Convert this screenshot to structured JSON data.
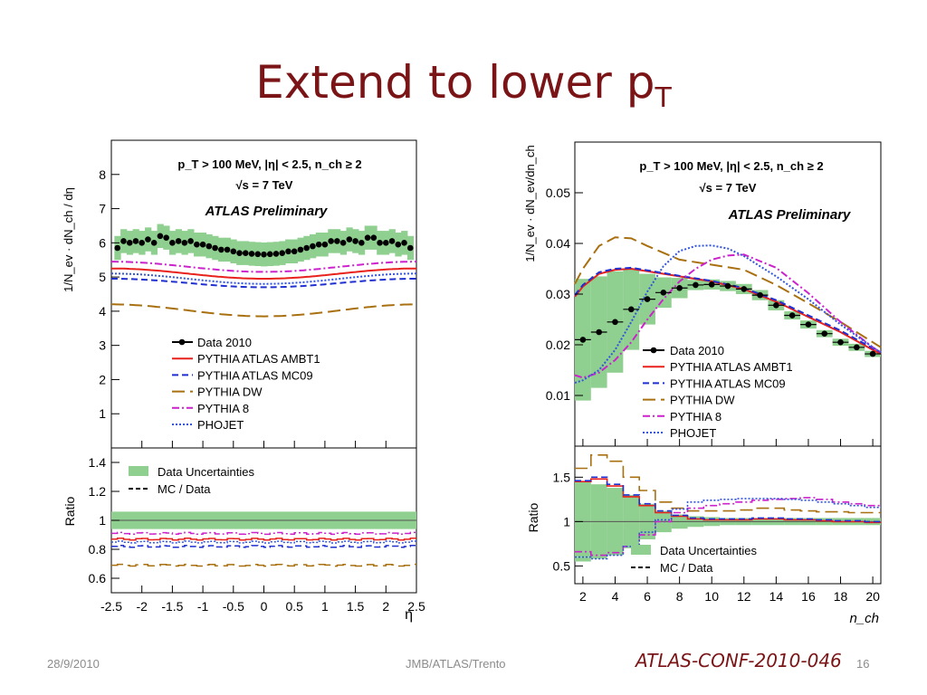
{
  "slide": {
    "title_main": "Extend to lower p",
    "title_sub": "T",
    "footer_date": "28/9/2010",
    "footer_center": "JMB/ATLAS/Trento",
    "footer_conf": "ATLAS-CONF-2010-046",
    "page_number": "16"
  },
  "chart_data": [
    {
      "type": "line",
      "panel": "eta-distribution",
      "cuts_text": "p_T > 100 MeV, |η| < 2.5, n_ch ≥ 2",
      "energy_text": "√s = 7 TeV",
      "label": "ATLAS Preliminary",
      "ylabel": "1/N_ev · dN_ch / dη",
      "xlabel": "η",
      "xlim": [
        -2.5,
        2.5
      ],
      "ylim": [
        0,
        9
      ],
      "xticks": [
        "-2.5",
        "-2",
        "-1.5",
        "-1",
        "-0.5",
        "0",
        "0.5",
        "1",
        "1.5",
        "2",
        "2.5"
      ],
      "yticks": [
        "1",
        "2",
        "3",
        "4",
        "5",
        "6",
        "7",
        "8"
      ],
      "legend": [
        "Data 2010",
        "PYTHIA ATLAS AMBT1",
        "PYTHIA ATLAS MC09",
        "PYTHIA DW",
        "PYTHIA 8",
        "PHOJET"
      ],
      "data": {
        "x": [
          -2.4,
          -2.3,
          -2.2,
          -2.1,
          -2.0,
          -1.9,
          -1.8,
          -1.7,
          -1.6,
          -1.5,
          -1.4,
          -1.3,
          -1.2,
          -1.1,
          -1.0,
          -0.9,
          -0.8,
          -0.7,
          -0.6,
          -0.5,
          -0.4,
          -0.3,
          -0.2,
          -0.1,
          0.0,
          0.1,
          0.2,
          0.3,
          0.4,
          0.5,
          0.6,
          0.7,
          0.8,
          0.9,
          1.0,
          1.1,
          1.2,
          1.3,
          1.4,
          1.5,
          1.6,
          1.7,
          1.8,
          1.9,
          2.0,
          2.1,
          2.2,
          2.3,
          2.4
        ],
        "y": [
          5.85,
          6.05,
          6.0,
          6.05,
          6.0,
          6.1,
          6.0,
          6.2,
          6.15,
          6.0,
          6.05,
          6.0,
          6.05,
          5.95,
          5.95,
          5.9,
          5.85,
          5.8,
          5.8,
          5.75,
          5.7,
          5.7,
          5.68,
          5.67,
          5.66,
          5.67,
          5.68,
          5.7,
          5.75,
          5.75,
          5.8,
          5.85,
          5.9,
          5.95,
          5.95,
          6.05,
          6.05,
          6.0,
          6.1,
          6.05,
          6.0,
          6.15,
          6.15,
          6.0,
          6.0,
          6.05,
          5.95,
          6.0,
          5.85
        ],
        "band_half_width": 0.35
      },
      "series": [
        {
          "name": "PYTHIA ATLAS AMBT1",
          "center": 4.95,
          "edge": 5.25,
          "color": "#e8211c",
          "dash": ""
        },
        {
          "name": "PYTHIA ATLAS MC09",
          "center": 4.7,
          "edge": 4.95,
          "color": "#1f2fd0",
          "dash": "7,4"
        },
        {
          "name": "PYTHIA DW",
          "center": 3.85,
          "edge": 4.2,
          "color": "#a87010",
          "dash": "14,6"
        },
        {
          "name": "PYTHIA 8",
          "center": 5.15,
          "edge": 5.45,
          "color": "#cc22cc",
          "dash": "8,3,2,3"
        },
        {
          "name": "PHOJET",
          "center": 4.8,
          "edge": 5.1,
          "color": "#3355dd",
          "dash": "2,2"
        }
      ],
      "ratio": {
        "ylabel": "Ratio",
        "ylim": [
          0.5,
          1.5
        ],
        "yticks": [
          "0.6",
          "0.8",
          "1",
          "1.2",
          "1.4"
        ],
        "legend": [
          "Data Uncertainties",
          "MC / Data"
        ],
        "band_half_width": 0.06,
        "series": [
          {
            "name": "PYTHIA ATLAS AMBT1",
            "value": 0.87
          },
          {
            "name": "PYTHIA ATLAS MC09",
            "value": 0.82
          },
          {
            "name": "PYTHIA DW",
            "value": 0.69
          },
          {
            "name": "PYTHIA 8",
            "value": 0.91
          },
          {
            "name": "PHOJET",
            "value": 0.85
          }
        ]
      }
    },
    {
      "type": "line",
      "panel": "nch-distribution",
      "cuts_text": "p_T > 100 MeV, |η| < 2.5, n_ch ≥ 2",
      "energy_text": "√s = 7 TeV",
      "label": "ATLAS Preliminary",
      "ylabel": "1/N_ev · dN_ev/dn_ch",
      "xlabel": "n_ch",
      "xlim": [
        1.5,
        20.5
      ],
      "ylim": [
        0,
        0.06
      ],
      "xticks": [
        "2",
        "4",
        "6",
        "8",
        "10",
        "12",
        "14",
        "16",
        "18",
        "20"
      ],
      "yticks": [
        "0.01",
        "0.02",
        "0.03",
        "0.04",
        "0.05"
      ],
      "legend": [
        "Data 2010",
        "PYTHIA ATLAS AMBT1",
        "PYTHIA ATLAS MC09",
        "PYTHIA DW",
        "PYTHIA 8",
        "PHOJET"
      ],
      "data": {
        "x": [
          2,
          3,
          4,
          5,
          6,
          7,
          8,
          9,
          10,
          11,
          12,
          13,
          14,
          15,
          16,
          17,
          18,
          19,
          20
        ],
        "y": [
          0.021,
          0.0225,
          0.0245,
          0.027,
          0.029,
          0.0303,
          0.0312,
          0.0318,
          0.0319,
          0.0316,
          0.031,
          0.0298,
          0.0278,
          0.0258,
          0.024,
          0.0222,
          0.0205,
          0.0195,
          0.0182
        ],
        "band_half_width": [
          0.012,
          0.011,
          0.01,
          0.008,
          0.005,
          0.003,
          0.002,
          0.001,
          0.001,
          0.001,
          0.001,
          0.001,
          0.001,
          0.0008,
          0.0008,
          0.0007,
          0.0007,
          0.0007,
          0.0006
        ]
      },
      "series": [
        {
          "name": "PYTHIA ATLAS AMBT1",
          "color": "#e8211c",
          "dash": "",
          "x": [
            1.5,
            2,
            3,
            4,
            5,
            6,
            8,
            10,
            12,
            14,
            16,
            18,
            20,
            20.5
          ],
          "y": [
            0.0295,
            0.0315,
            0.034,
            0.0348,
            0.035,
            0.0345,
            0.0335,
            0.0325,
            0.031,
            0.0285,
            0.0255,
            0.0225,
            0.019,
            0.0182
          ]
        },
        {
          "name": "PYTHIA ATLAS MC09",
          "color": "#1f2fd0",
          "dash": "7,4",
          "x": [
            1.5,
            2,
            3,
            4,
            5,
            6,
            8,
            10,
            12,
            14,
            16,
            18,
            20,
            20.5
          ],
          "y": [
            0.0298,
            0.0318,
            0.0343,
            0.035,
            0.0352,
            0.0347,
            0.0336,
            0.0326,
            0.0312,
            0.0288,
            0.0258,
            0.0228,
            0.0193,
            0.0185
          ]
        },
        {
          "name": "PYTHIA DW",
          "color": "#a87010",
          "dash": "14,6",
          "x": [
            1.5,
            2,
            3,
            4,
            5,
            6,
            8,
            10,
            12,
            14,
            16,
            18,
            20,
            20.5
          ],
          "y": [
            0.032,
            0.035,
            0.0395,
            0.0412,
            0.041,
            0.0395,
            0.0368,
            0.0358,
            0.0348,
            0.0318,
            0.0282,
            0.0245,
            0.0205,
            0.0195
          ]
        },
        {
          "name": "PYTHIA 8",
          "color": "#cc22cc",
          "dash": "8,3,2,3",
          "x": [
            1.5,
            2,
            3,
            4,
            5,
            6,
            7,
            8,
            9,
            10,
            11,
            12,
            14,
            16,
            18,
            20,
            20.5
          ],
          "y": [
            0.014,
            0.0135,
            0.0145,
            0.017,
            0.0205,
            0.025,
            0.029,
            0.0325,
            0.035,
            0.0368,
            0.0376,
            0.0378,
            0.0352,
            0.0302,
            0.0245,
            0.0195,
            0.0185
          ]
        },
        {
          "name": "PHOJET",
          "color": "#3355dd",
          "dash": "2,2",
          "x": [
            1.5,
            2,
            3,
            4,
            5,
            6,
            7,
            8,
            9,
            10,
            11,
            12,
            14,
            16,
            18,
            20,
            20.5
          ],
          "y": [
            0.0125,
            0.013,
            0.015,
            0.019,
            0.0245,
            0.0305,
            0.0355,
            0.0385,
            0.0395,
            0.0396,
            0.039,
            0.0375,
            0.0335,
            0.029,
            0.024,
            0.0195,
            0.0185
          ]
        }
      ],
      "ratio": {
        "ylabel": "Ratio",
        "ylim": [
          0.3,
          1.85
        ],
        "yticks": [
          "0.5",
          "1",
          "1.5"
        ],
        "legend": [
          "Data Uncertainties",
          "MC / Data"
        ],
        "band_half_width": [
          0.45,
          0.42,
          0.38,
          0.3,
          0.2,
          0.12,
          0.08,
          0.06,
          0.05,
          0.04,
          0.04,
          0.04,
          0.04,
          0.04,
          0.04,
          0.04,
          0.04,
          0.04,
          0.04
        ],
        "series": [
          {
            "name": "PYTHIA ATLAS AMBT1",
            "values": [
              1.45,
              1.48,
              1.4,
              1.28,
              1.18,
              1.1,
              1.06,
              1.03,
              1.02,
              1.02,
              1.02,
              1.03,
              1.03,
              1.02,
              1.02,
              1.01,
              1.0,
              1.0,
              0.99
            ]
          },
          {
            "name": "PYTHIA ATLAS MC09",
            "values": [
              1.46,
              1.5,
              1.42,
              1.3,
              1.2,
              1.12,
              1.07,
              1.04,
              1.03,
              1.03,
              1.03,
              1.04,
              1.04,
              1.03,
              1.03,
              1.02,
              1.01,
              1.01,
              1.0
            ]
          },
          {
            "name": "PYTHIA DW",
            "values": [
              1.6,
              1.75,
              1.68,
              1.5,
              1.35,
              1.22,
              1.15,
              1.12,
              1.12,
              1.12,
              1.13,
              1.15,
              1.15,
              1.13,
              1.12,
              1.11,
              1.11,
              1.1,
              1.1
            ]
          },
          {
            "name": "PYTHIA 8",
            "values": [
              0.66,
              0.62,
              0.65,
              0.72,
              0.85,
              1.0,
              1.1,
              1.15,
              1.18,
              1.2,
              1.22,
              1.24,
              1.25,
              1.26,
              1.27,
              1.25,
              1.22,
              1.2,
              1.18
            ]
          },
          {
            "name": "PHOJET",
            "values": [
              0.6,
              0.58,
              0.62,
              0.72,
              0.88,
              1.02,
              1.14,
              1.22,
              1.24,
              1.25,
              1.26,
              1.26,
              1.26,
              1.25,
              1.24,
              1.22,
              1.2,
              1.18,
              1.16
            ]
          }
        ]
      }
    }
  ]
}
